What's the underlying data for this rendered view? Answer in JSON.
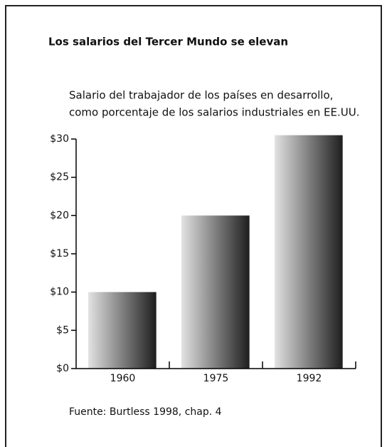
{
  "chart_data": {
    "type": "bar",
    "title": "Los salarios del Tercer Mundo se elevan",
    "subtitle": [
      "Salario del trabajador de los países en desarrollo,",
      "como porcentaje de los salarios industriales en EE.UU."
    ],
    "source": "Fuente: Burtless 1998, chap. 4",
    "categories": [
      "1960",
      "1975",
      "1992"
    ],
    "values": [
      10,
      20,
      30.5
    ],
    "ylim": [
      0,
      30
    ],
    "yticks": [
      {
        "value": 0,
        "label": "$0"
      },
      {
        "value": 5,
        "label": "$5"
      },
      {
        "value": 10,
        "label": "$10"
      },
      {
        "value": 15,
        "label": "$15"
      },
      {
        "value": 20,
        "label": "$20"
      },
      {
        "value": 25,
        "label": "$25"
      },
      {
        "value": 30,
        "label": "$30"
      }
    ],
    "grid": false
  }
}
